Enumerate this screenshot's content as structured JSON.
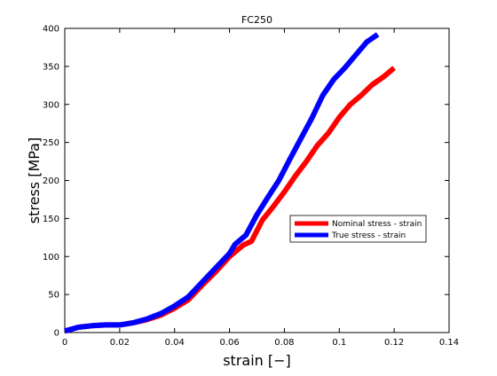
{
  "chart_data": {
    "type": "line",
    "title": "FC250",
    "xlabel": "strain [−]",
    "ylabel": "stress [MPa]",
    "xlim": [
      0,
      0.14
    ],
    "ylim": [
      0,
      400
    ],
    "x_ticks": [
      0,
      0.02,
      0.04,
      0.06,
      0.08,
      0.1,
      0.12,
      0.14
    ],
    "x_tick_labels": [
      "0",
      "0.02",
      "0.04",
      "0.06",
      "0.08",
      "0.1",
      "0.12",
      "0.14"
    ],
    "y_ticks": [
      0,
      50,
      100,
      150,
      200,
      250,
      300,
      350,
      400
    ],
    "y_tick_labels": [
      "0",
      "50",
      "100",
      "150",
      "200",
      "250",
      "300",
      "350",
      "400"
    ],
    "grid": false,
    "legend_position": "center-right",
    "series": [
      {
        "name": "Nominal stress - strain",
        "color": "#ff0000",
        "x": [
          0,
          0.005,
          0.01,
          0.015,
          0.02,
          0.025,
          0.03,
          0.035,
          0.04,
          0.045,
          0.05,
          0.055,
          0.06,
          0.065,
          0.068,
          0.072,
          0.076,
          0.08,
          0.084,
          0.088,
          0.092,
          0.096,
          0.1,
          0.104,
          0.108,
          0.112,
          0.116,
          0.12
        ],
        "y": [
          2,
          7,
          9,
          10,
          10,
          13,
          17,
          23,
          32,
          43,
          62,
          80,
          100,
          115,
          120,
          148,
          166,
          185,
          206,
          225,
          246,
          262,
          283,
          300,
          312,
          326,
          336,
          348
        ]
      },
      {
        "name": "True stress - strain",
        "color": "#0000ff",
        "x": [
          0,
          0.005,
          0.01,
          0.015,
          0.02,
          0.025,
          0.03,
          0.035,
          0.04,
          0.045,
          0.05,
          0.055,
          0.06,
          0.062,
          0.066,
          0.07,
          0.074,
          0.078,
          0.082,
          0.086,
          0.09,
          0.094,
          0.098,
          0.102,
          0.106,
          0.11,
          0.114
        ],
        "y": [
          2,
          7,
          9,
          10,
          10,
          13,
          18,
          25,
          35,
          47,
          66,
          85,
          104,
          116,
          128,
          155,
          178,
          200,
          228,
          255,
          282,
          312,
          333,
          348,
          365,
          382,
          392
        ]
      }
    ]
  }
}
